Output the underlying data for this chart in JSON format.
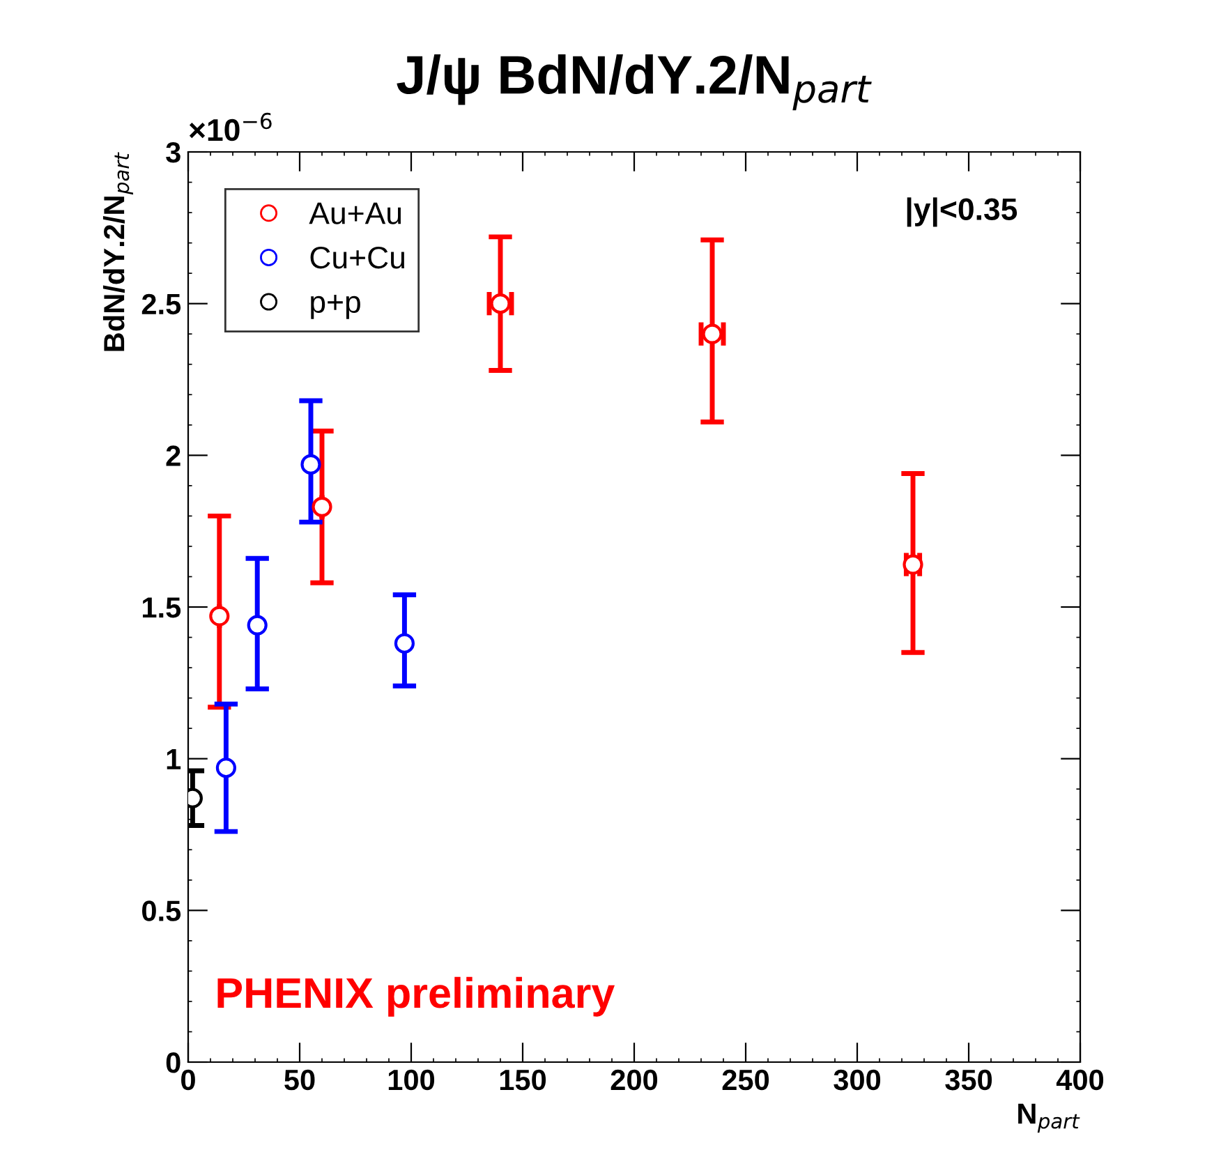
{
  "chart_data": {
    "type": "scatter",
    "title": "J/ψ BdN/dY.2/N$_{part}$",
    "xlabel": "N$_{part}$",
    "ylabel": "BdN/dY.2/N$_{part}$",
    "xlim": [
      0,
      400
    ],
    "xticks": [
      0,
      50,
      100,
      150,
      200,
      250,
      300,
      350,
      400
    ],
    "ylim": [
      0,
      3
    ],
    "yticks": [
      0,
      0.5,
      1,
      1.5,
      2,
      2.5,
      3
    ],
    "marker": "circle",
    "legend": "top left",
    "grid": false,
    "annotations": [
      "×10$^{−6}$",
      "|y|<0.35",
      "PHENIX preliminary"
    ],
    "series": [
      {
        "name": "Au+Au",
        "color": "#ff0000",
        "x": [
          14,
          60,
          140,
          235,
          325
        ],
        "values": [
          1.47,
          1.83,
          2.5,
          2.4,
          1.64
        ],
        "errors": [
          [
            1.17,
            1.8
          ],
          [
            1.58,
            2.08
          ],
          [
            2.28,
            2.72
          ],
          [
            2.11,
            2.71
          ],
          [
            1.35,
            1.94
          ]
        ],
        "xerrors": [
          null,
          null,
          5,
          5,
          3
        ]
      },
      {
        "name": "Cu+Cu",
        "color": "#0000ff",
        "x": [
          17,
          31,
          55,
          97
        ],
        "values": [
          0.97,
          1.44,
          1.97,
          1.38
        ],
        "errors": [
          [
            0.76,
            1.18
          ],
          [
            1.23,
            1.66
          ],
          [
            1.78,
            2.18
          ],
          [
            1.24,
            1.54
          ]
        ]
      },
      {
        "name": "p+p",
        "color": "#000000",
        "x": [
          2
        ],
        "values": [
          0.87
        ],
        "errors": [
          [
            0.78,
            0.96
          ]
        ]
      }
    ]
  }
}
